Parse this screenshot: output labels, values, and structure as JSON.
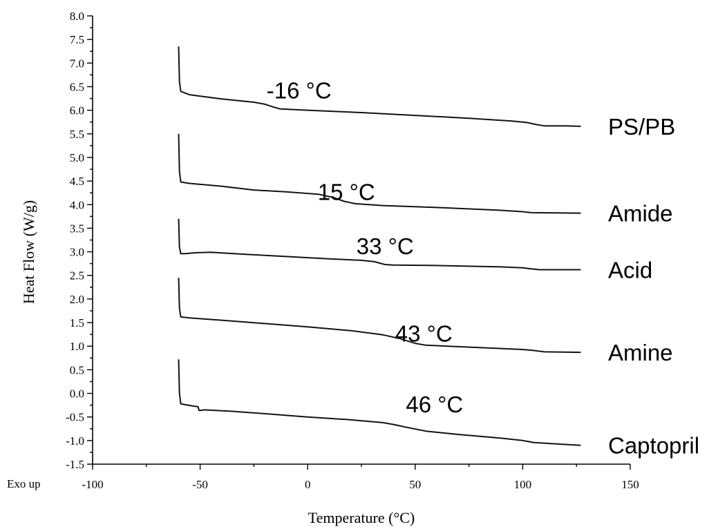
{
  "corner_note": "Exo up",
  "chart_data": {
    "type": "line",
    "title": "",
    "xlabel": "Temperature (°C)",
    "ylabel": "Heat Flow (W/g)",
    "xlim": [
      -100,
      150
    ],
    "ylim": [
      -1.5,
      8.0
    ],
    "x_ticks": [
      "-100",
      "-50",
      "0",
      "50",
      "100",
      "150"
    ],
    "y_ticks": [
      "-1.5",
      "-1.0",
      "-0.5",
      "0.0",
      "0.5",
      "1.0",
      "1.5",
      "2.0",
      "2.5",
      "3.0",
      "3.5",
      "4.0",
      "4.5",
      "5.0",
      "5.5",
      "6.0",
      "6.5",
      "7.0",
      "7.5",
      "8.0"
    ],
    "grid": false,
    "series": [
      {
        "name": "PS/PB",
        "annotation": "-16 °C",
        "annotation_at": [
          -4,
          6.25
        ],
        "points": [
          [
            -60,
            7.35
          ],
          [
            -59.6,
            6.6
          ],
          [
            -59,
            6.4
          ],
          [
            -55,
            6.33
          ],
          [
            -40,
            6.24
          ],
          [
            -25,
            6.17
          ],
          [
            -20,
            6.13
          ],
          [
            -16,
            6.07
          ],
          [
            -13,
            6.03
          ],
          [
            0,
            6.0
          ],
          [
            25,
            5.95
          ],
          [
            50,
            5.89
          ],
          [
            75,
            5.83
          ],
          [
            95,
            5.77
          ],
          [
            102,
            5.74
          ],
          [
            106,
            5.7
          ],
          [
            110,
            5.67
          ],
          [
            120,
            5.67
          ],
          [
            127,
            5.66
          ]
        ]
      },
      {
        "name": "Amide",
        "annotation": "15 °C",
        "annotation_at": [
          18,
          4.1
        ],
        "points": [
          [
            -60,
            5.5
          ],
          [
            -59.6,
            4.7
          ],
          [
            -59,
            4.48
          ],
          [
            -55,
            4.45
          ],
          [
            -40,
            4.39
          ],
          [
            -25,
            4.31
          ],
          [
            -10,
            4.27
          ],
          [
            5,
            4.22
          ],
          [
            12,
            4.15
          ],
          [
            17,
            4.07
          ],
          [
            22,
            4.02
          ],
          [
            35,
            3.98
          ],
          [
            60,
            3.94
          ],
          [
            90,
            3.88
          ],
          [
            100,
            3.85
          ],
          [
            104,
            3.83
          ],
          [
            127,
            3.82
          ]
        ]
      },
      {
        "name": "Acid",
        "annotation": "33 °C",
        "annotation_at": [
          36,
          2.95
        ],
        "points": [
          [
            -60,
            3.7
          ],
          [
            -59.6,
            3.1
          ],
          [
            -59,
            2.96
          ],
          [
            -57,
            2.96
          ],
          [
            -52,
            2.98
          ],
          [
            -45,
            2.99
          ],
          [
            -30,
            2.95
          ],
          [
            -10,
            2.9
          ],
          [
            10,
            2.85
          ],
          [
            25,
            2.82
          ],
          [
            31,
            2.79
          ],
          [
            36,
            2.73
          ],
          [
            40,
            2.72
          ],
          [
            60,
            2.71
          ],
          [
            90,
            2.68
          ],
          [
            100,
            2.66
          ],
          [
            104,
            2.64
          ],
          [
            108,
            2.62
          ],
          [
            127,
            2.62
          ]
        ]
      },
      {
        "name": "Amine",
        "annotation": "43 °C",
        "annotation_at": [
          54,
          1.1
        ],
        "points": [
          [
            -60,
            2.45
          ],
          [
            -59.6,
            1.8
          ],
          [
            -59,
            1.62
          ],
          [
            -55,
            1.6
          ],
          [
            -40,
            1.55
          ],
          [
            -20,
            1.48
          ],
          [
            0,
            1.41
          ],
          [
            20,
            1.33
          ],
          [
            35,
            1.24
          ],
          [
            43,
            1.16
          ],
          [
            50,
            1.06
          ],
          [
            55,
            1.02
          ],
          [
            70,
            0.99
          ],
          [
            90,
            0.95
          ],
          [
            100,
            0.93
          ],
          [
            105,
            0.91
          ],
          [
            110,
            0.88
          ],
          [
            127,
            0.87
          ]
        ]
      },
      {
        "name": "Captopril",
        "annotation": "46 °C",
        "annotation_at": [
          59,
          -0.4
        ],
        "points": [
          [
            -60,
            0.72
          ],
          [
            -59.6,
            0.0
          ],
          [
            -59,
            -0.22
          ],
          [
            -57,
            -0.24
          ],
          [
            -53,
            -0.27
          ],
          [
            -51,
            -0.28
          ],
          [
            -50.5,
            -0.36
          ],
          [
            -49.5,
            -0.36
          ],
          [
            -48,
            -0.35
          ],
          [
            -35,
            -0.38
          ],
          [
            -20,
            -0.43
          ],
          [
            0,
            -0.5
          ],
          [
            20,
            -0.56
          ],
          [
            35,
            -0.62
          ],
          [
            40,
            -0.66
          ],
          [
            46,
            -0.72
          ],
          [
            55,
            -0.8
          ],
          [
            70,
            -0.87
          ],
          [
            90,
            -0.95
          ],
          [
            100,
            -1.0
          ],
          [
            105,
            -1.04
          ],
          [
            115,
            -1.07
          ],
          [
            127,
            -1.1
          ]
        ]
      }
    ]
  }
}
